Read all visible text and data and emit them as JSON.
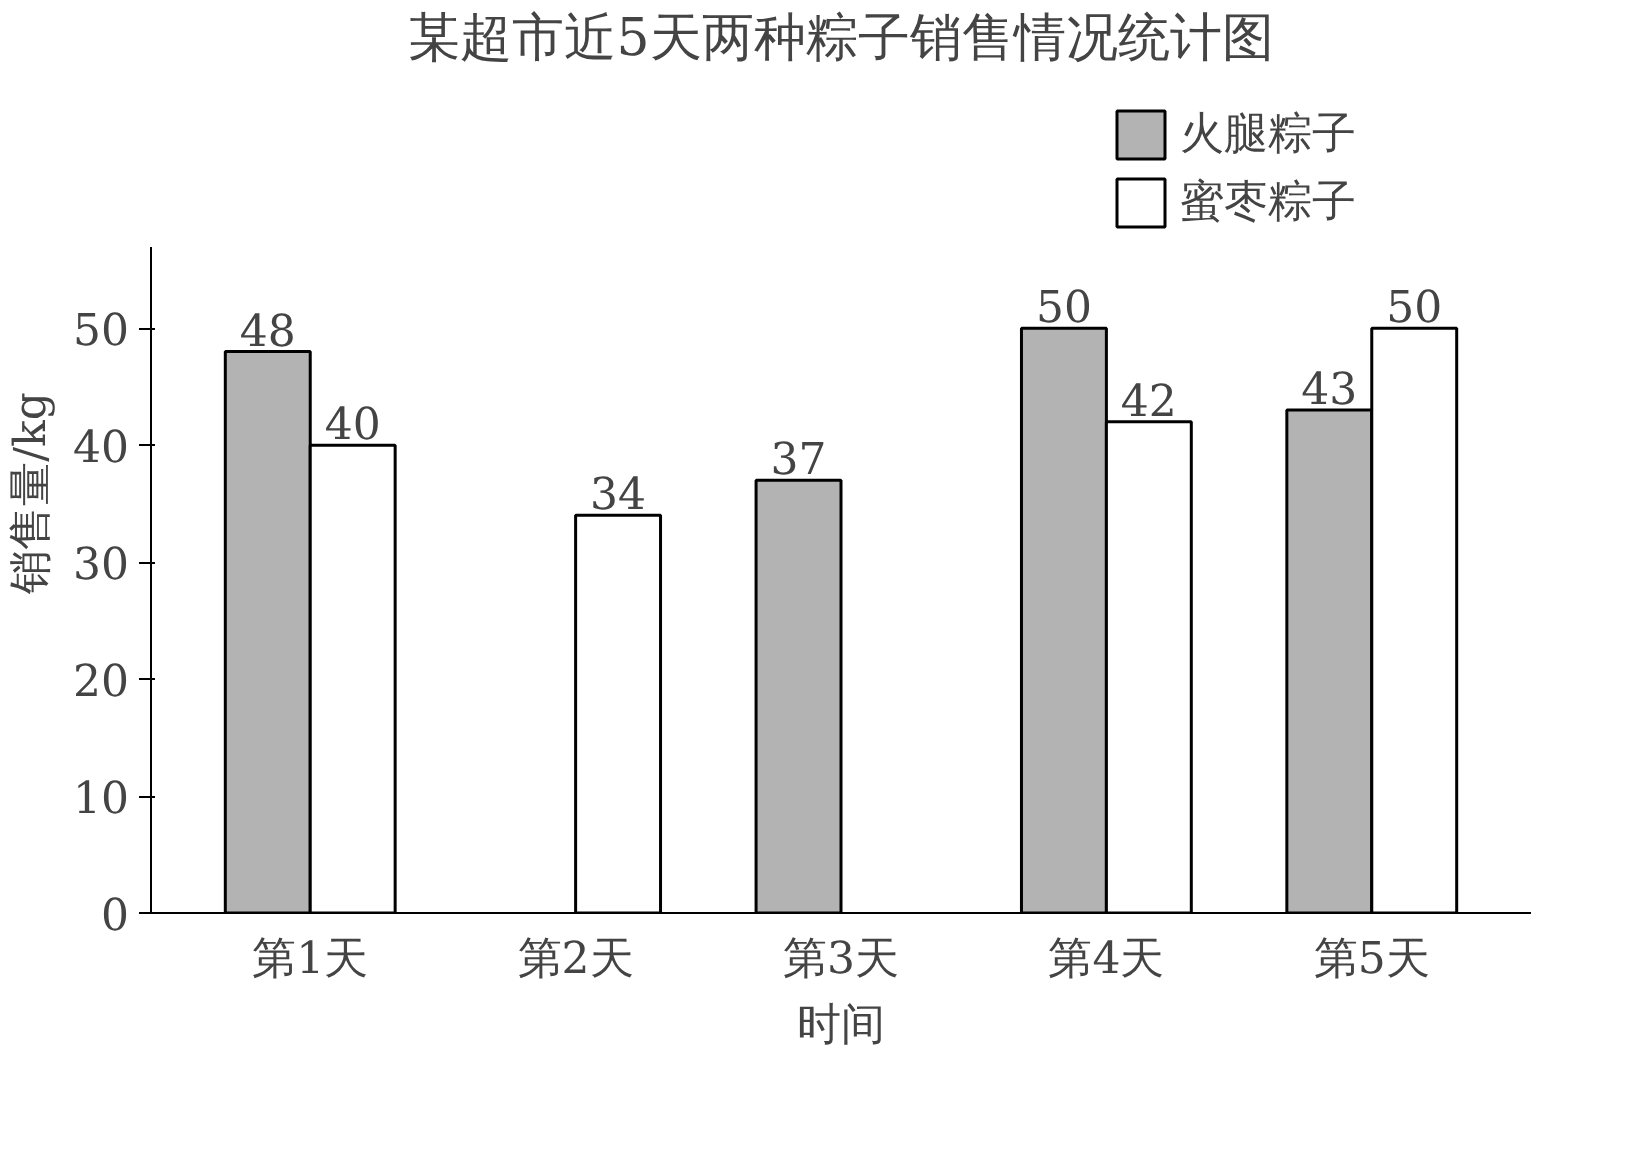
{
  "chart_data": {
    "type": "bar",
    "title": "某超市近5天两种粽子销售情况统计图",
    "categories": [
      "第1天",
      "第2天",
      "第3天",
      "第4天",
      "第5天"
    ],
    "series": [
      {
        "name": "火腿粽子",
        "color": "#b3b3b3",
        "values": [
          48,
          null,
          37,
          50,
          43
        ]
      },
      {
        "name": "蜜枣粽子",
        "color": "#ffffff",
        "values": [
          40,
          34,
          null,
          42,
          50
        ]
      }
    ],
    "xlabel": "时间",
    "ylabel": "销售量/kg",
    "ylim": [
      0,
      57
    ],
    "yticks": [
      0,
      10,
      20,
      30,
      40,
      50
    ],
    "data_labels": true,
    "grid": false,
    "legend": "top right"
  }
}
